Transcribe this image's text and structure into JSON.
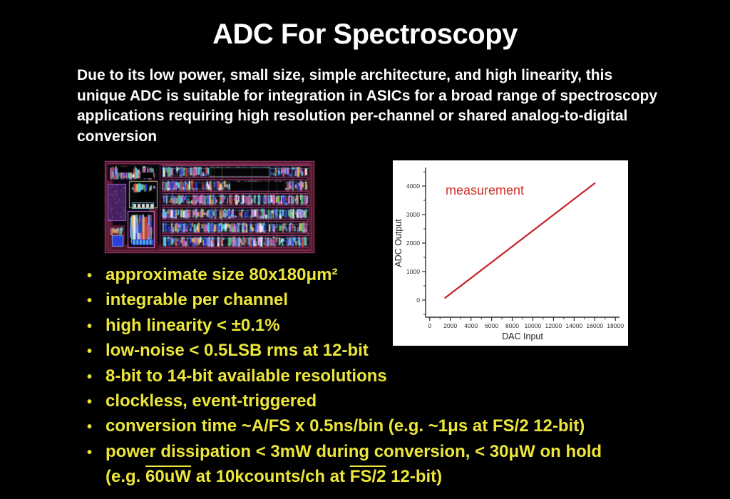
{
  "slide": {
    "title": "ADC For Spectroscopy",
    "intro_lines": [
      "Due to its low power, small size, simple architecture, and high linearity, this",
      "unique ADC is suitable for integration in ASICs for a broad range of spectroscopy",
      "applications requiring high resolution per-channel or shared analog-to-digital",
      "conversion"
    ],
    "bullet_lines": [
      {
        "marker": true,
        "segments": [
          {
            "text": "approximate size 80x180μm²"
          }
        ]
      },
      {
        "marker": true,
        "segments": [
          {
            "text": "integrable per channel"
          }
        ]
      },
      {
        "marker": true,
        "segments": [
          {
            "text": "high linearity < ±0.1%"
          }
        ]
      },
      {
        "marker": true,
        "segments": [
          {
            "text": "low-noise < 0.5LSB rms at 12-bit"
          }
        ]
      },
      {
        "marker": true,
        "segments": [
          {
            "text": "8-bit to 14-bit available resolutions"
          }
        ]
      },
      {
        "marker": true,
        "segments": [
          {
            "text": "clockless, event-triggered"
          }
        ]
      },
      {
        "marker": true,
        "segments": [
          {
            "text": "conversion time ~A/FS x 0.5ns/bin (e.g. ~1μs at FS/2 12-bit)"
          }
        ]
      },
      {
        "marker": true,
        "segments": [
          {
            "text": "power dissipation < 3mW during conversion, < 30μW on hold"
          }
        ]
      },
      {
        "marker": false,
        "segments": [
          {
            "text": "(e.g. "
          },
          {
            "text": "60uW",
            "overline": true
          },
          {
            "text": " at 10kcounts/ch at "
          },
          {
            "text": "FS/2",
            "overline": true
          },
          {
            "text": " 12-bit)"
          }
        ]
      }
    ],
    "colors": {
      "background": "#000000",
      "title": "#ffffff",
      "body_text": "#fcfcfc",
      "bullet_text": "#ece63a"
    }
  },
  "chart_data": {
    "type": "line",
    "title": "",
    "legend_text": "measurement",
    "legend_position": "top-left-inside",
    "legend_color": "#d03028",
    "xlabel": "DAC Input",
    "ylabel": "ADC Output",
    "xlim": [
      -400,
      18400
    ],
    "ylim": [
      -600,
      4600
    ],
    "x_major_ticks": [
      0,
      2000,
      4000,
      6000,
      8000,
      10000,
      12000,
      14000,
      16000,
      18000
    ],
    "x_minor_step": 1000,
    "y_major_ticks": [
      0,
      1000,
      2000,
      3000,
      4000
    ],
    "y_minor_step": 500,
    "grid": false,
    "panel_background": "#ffffff",
    "axis_color": "#2e2e2e",
    "series": [
      {
        "name": "measurement",
        "color": "#c8282e",
        "x": [
          1500,
          16000
        ],
        "y": [
          80,
          4100
        ]
      }
    ]
  },
  "chip_layout": {
    "palette": [
      "#58c8d8",
      "#3050d0",
      "#8898e8",
      "#c878d8",
      "#d8b060",
      "#e8ecf4",
      "#b05898",
      "#50b878",
      "#2838c0",
      "#c04040"
    ],
    "frame_color": "#b04070",
    "field_color": "#4a1426",
    "purple_block": "#46205e",
    "bright_blue": "#2840d8"
  }
}
